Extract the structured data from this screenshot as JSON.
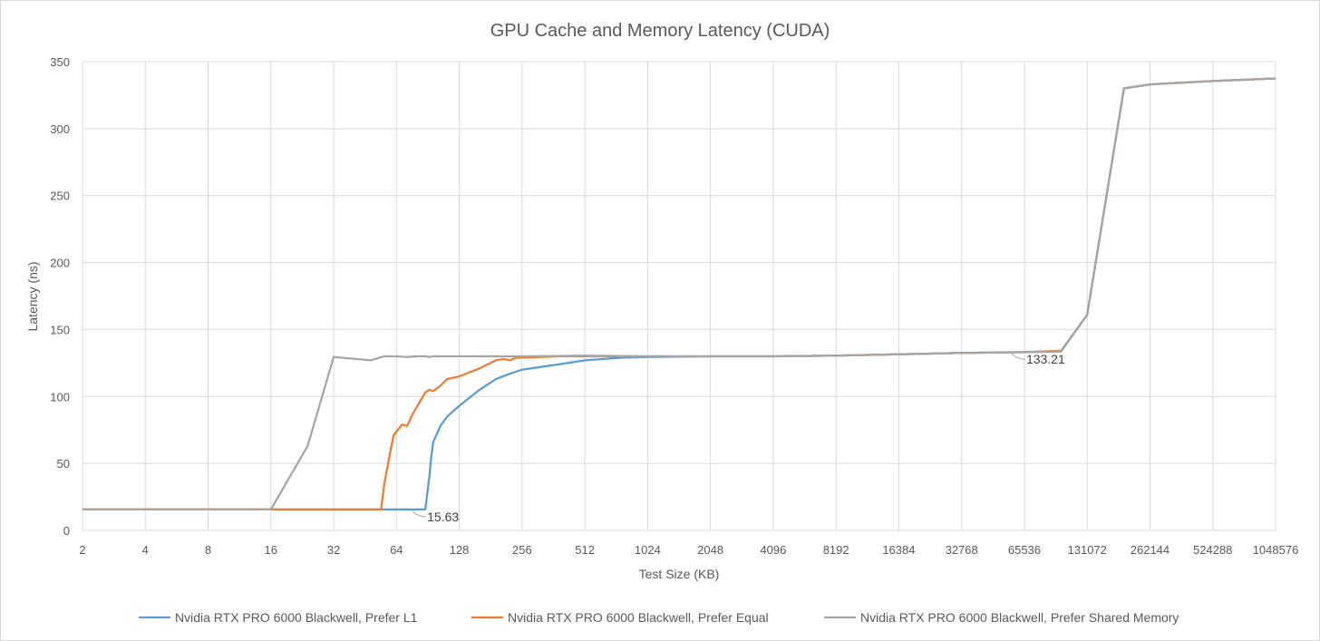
{
  "chart_data": {
    "type": "line",
    "title": "GPU Cache and Memory Latency (CUDA)",
    "xlabel": "Test Size (KB)",
    "ylabel": "Latency (ns)",
    "x_scale": "log2",
    "x_ticks": [
      "2",
      "4",
      "8",
      "16",
      "32",
      "64",
      "128",
      "256",
      "512",
      "1024",
      "2048",
      "4096",
      "8192",
      "16384",
      "32768",
      "65536",
      "131072",
      "262144",
      "524288",
      "1048576"
    ],
    "xlim": [
      2,
      1048576
    ],
    "y_ticks": [
      "0",
      "50",
      "100",
      "150",
      "200",
      "250",
      "300",
      "350"
    ],
    "ylim": [
      0,
      350
    ],
    "grid": true,
    "legend_position": "bottom",
    "series": [
      {
        "name": "Nvidia RTX PRO 6000 Blackwell, Prefer L1",
        "color": "#5b9bd5",
        "points": [
          [
            2,
            15.63
          ],
          [
            4,
            15.63
          ],
          [
            8,
            15.63
          ],
          [
            16,
            15.63
          ],
          [
            32,
            15.63
          ],
          [
            64,
            15.63
          ],
          [
            80,
            15.63
          ],
          [
            88,
            15.63
          ],
          [
            92,
            40
          ],
          [
            94,
            55
          ],
          [
            96,
            66
          ],
          [
            104,
            78
          ],
          [
            112,
            85
          ],
          [
            128,
            93
          ],
          [
            160,
            105
          ],
          [
            192,
            113
          ],
          [
            224,
            117
          ],
          [
            256,
            120
          ],
          [
            384,
            124
          ],
          [
            512,
            127
          ],
          [
            768,
            129
          ],
          [
            1024,
            129.5
          ],
          [
            2048,
            130
          ],
          [
            4096,
            130
          ],
          [
            8192,
            130.5
          ],
          [
            16384,
            131.5
          ],
          [
            32768,
            132.5
          ],
          [
            65536,
            133.21
          ],
          [
            98304,
            134
          ],
          [
            131072,
            161
          ],
          [
            196608,
            330
          ],
          [
            262144,
            333
          ],
          [
            524288,
            335.5
          ],
          [
            1048576,
            337.5
          ]
        ]
      },
      {
        "name": "Nvidia RTX PRO 6000 Blackwell, Prefer Equal",
        "color": "#ed7d31",
        "points": [
          [
            2,
            15.63
          ],
          [
            4,
            15.63
          ],
          [
            8,
            15.63
          ],
          [
            16,
            15.63
          ],
          [
            32,
            15.63
          ],
          [
            54,
            15.63
          ],
          [
            56,
            35
          ],
          [
            60,
            60
          ],
          [
            62,
            71
          ],
          [
            68,
            79
          ],
          [
            72,
            78
          ],
          [
            76,
            86
          ],
          [
            80,
            92
          ],
          [
            88,
            103
          ],
          [
            92,
            105
          ],
          [
            96,
            104
          ],
          [
            104,
            108
          ],
          [
            112,
            113
          ],
          [
            128,
            115
          ],
          [
            160,
            121
          ],
          [
            192,
            127
          ],
          [
            208,
            128
          ],
          [
            224,
            127
          ],
          [
            240,
            129
          ],
          [
            256,
            129
          ],
          [
            384,
            130
          ],
          [
            512,
            130
          ],
          [
            1024,
            130
          ],
          [
            2048,
            130
          ],
          [
            4096,
            130
          ],
          [
            8192,
            130.5
          ],
          [
            16384,
            131.5
          ],
          [
            32768,
            132.5
          ],
          [
            65536,
            133
          ],
          [
            98304,
            134
          ],
          [
            131072,
            161
          ],
          [
            196608,
            330
          ],
          [
            262144,
            333
          ],
          [
            524288,
            335.5
          ],
          [
            1048576,
            337.5
          ]
        ]
      },
      {
        "name": "Nvidia RTX PRO 6000 Blackwell, Prefer Shared Memory",
        "color": "#a5a5a5",
        "points": [
          [
            2,
            15.63
          ],
          [
            4,
            15.63
          ],
          [
            8,
            15.63
          ],
          [
            16,
            15.63
          ],
          [
            24,
            63
          ],
          [
            32,
            129.5
          ],
          [
            48,
            127
          ],
          [
            56,
            130
          ],
          [
            64,
            130
          ],
          [
            72,
            129.5
          ],
          [
            80,
            130
          ],
          [
            88,
            130
          ],
          [
            92,
            129.5
          ],
          [
            96,
            130
          ],
          [
            128,
            130
          ],
          [
            256,
            130
          ],
          [
            512,
            130.5
          ],
          [
            1024,
            130
          ],
          [
            2048,
            130
          ],
          [
            4096,
            130
          ],
          [
            8192,
            130.5
          ],
          [
            16384,
            131.5
          ],
          [
            32768,
            132.5
          ],
          [
            65536,
            133
          ],
          [
            98304,
            133.5
          ],
          [
            131072,
            161
          ],
          [
            196608,
            330
          ],
          [
            262144,
            333
          ],
          [
            524288,
            335.5
          ],
          [
            1048576,
            337.5
          ]
        ]
      }
    ],
    "data_labels": [
      {
        "x": 88,
        "y": 15.63,
        "text": "15.63"
      },
      {
        "x": 65536,
        "y": 133.21,
        "text": "133.21"
      }
    ]
  }
}
